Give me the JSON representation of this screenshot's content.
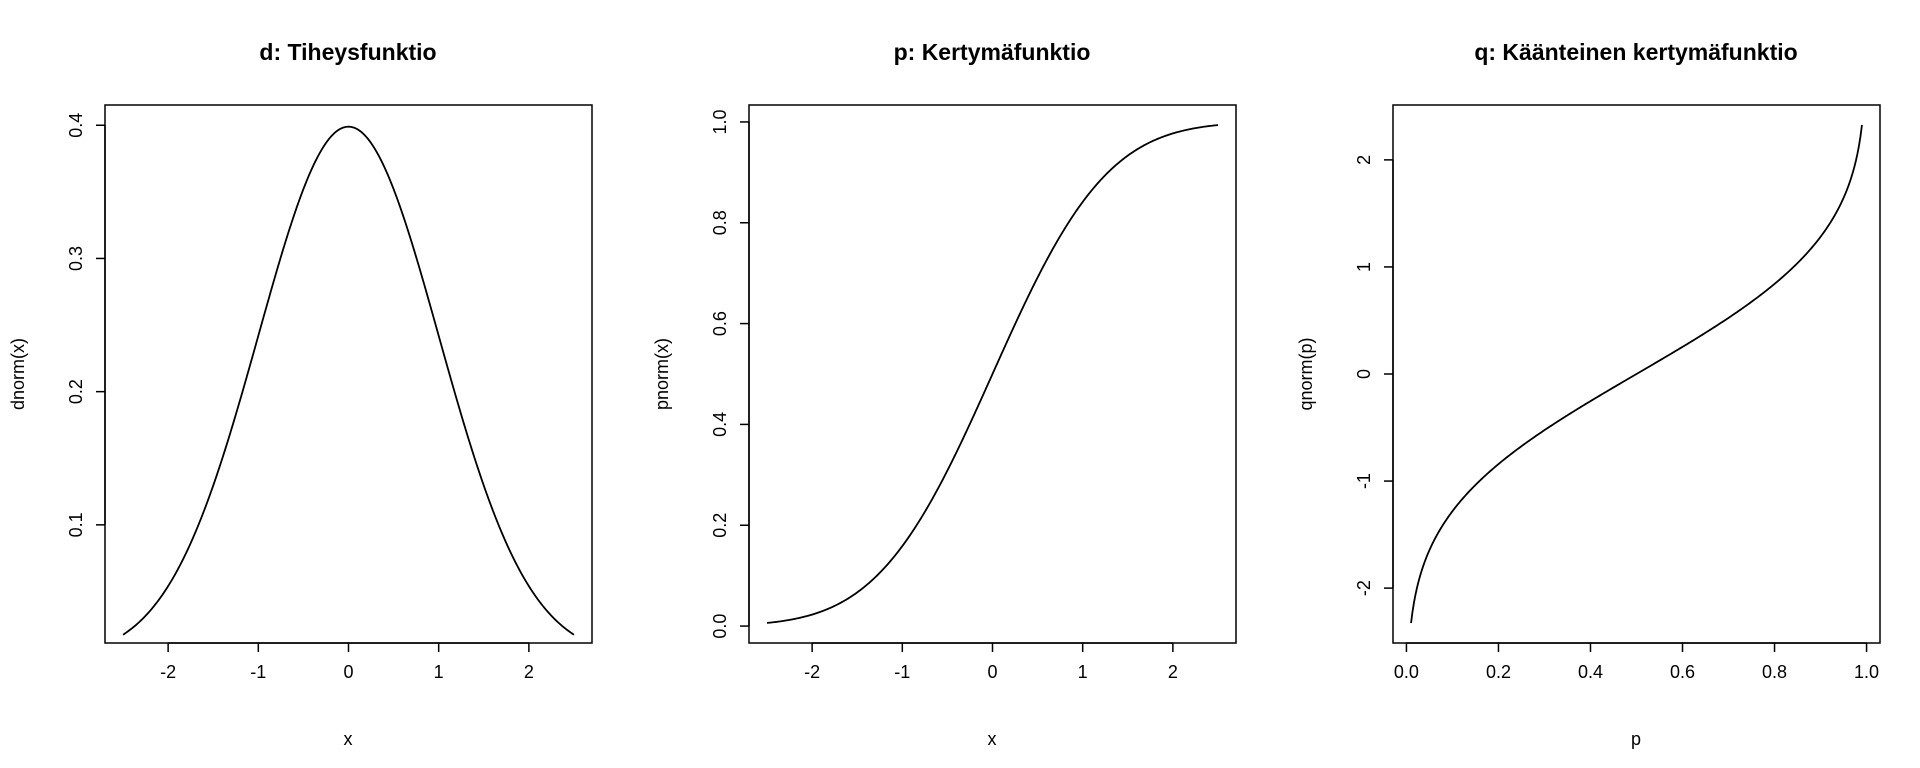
{
  "chart_data": [
    {
      "type": "line",
      "title": "d: Tiheysfunktio",
      "xlabel": "x",
      "ylabel": "dnorm(x)",
      "function": "dnorm",
      "x_range": [
        -2.5,
        2.5
      ],
      "xlim": [
        -2.7,
        2.7
      ],
      "ylim": [
        0.0113,
        0.4152
      ],
      "xticks": [
        -2,
        -1,
        0,
        1,
        2
      ],
      "xtick_labels": [
        "-2",
        "-1",
        "0",
        "1",
        "2"
      ],
      "yticks": [
        0.1,
        0.2,
        0.3,
        0.4
      ],
      "ytick_labels": [
        "0.1",
        "0.2",
        "0.3",
        "0.4"
      ],
      "grid": false,
      "key_points": [
        {
          "x": -2.5,
          "y": 0.0175
        },
        {
          "x": -2,
          "y": 0.054
        },
        {
          "x": -1,
          "y": 0.242
        },
        {
          "x": 0,
          "y": 0.399
        },
        {
          "x": 1,
          "y": 0.242
        },
        {
          "x": 2,
          "y": 0.054
        },
        {
          "x": 2.5,
          "y": 0.0175
        }
      ]
    },
    {
      "type": "line",
      "title": "p: Kertymäfunktio",
      "xlabel": "x",
      "ylabel": "pnorm(x)",
      "function": "pnorm",
      "x_range": [
        -2.5,
        2.5
      ],
      "xlim": [
        -2.7,
        2.7
      ],
      "ylim": [
        -0.0336,
        1.0336
      ],
      "xticks": [
        -2,
        -1,
        0,
        1,
        2
      ],
      "xtick_labels": [
        "-2",
        "-1",
        "0",
        "1",
        "2"
      ],
      "yticks": [
        0.0,
        0.2,
        0.4,
        0.6,
        0.8,
        1.0
      ],
      "ytick_labels": [
        "0.0",
        "0.2",
        "0.4",
        "0.6",
        "0.8",
        "1.0"
      ],
      "grid": false,
      "key_points": [
        {
          "x": -2.5,
          "y": 0.0062
        },
        {
          "x": -2,
          "y": 0.0228
        },
        {
          "x": -1,
          "y": 0.1587
        },
        {
          "x": 0,
          "y": 0.5
        },
        {
          "x": 1,
          "y": 0.8413
        },
        {
          "x": 2,
          "y": 0.9772
        },
        {
          "x": 2.5,
          "y": 0.9938
        }
      ]
    },
    {
      "type": "line",
      "title": "q: Käänteinen kertymäfunktio",
      "xlabel": "p",
      "ylabel": "qnorm(p)",
      "function": "qnorm",
      "x_range": [
        0.01,
        0.99
      ],
      "xlim": [
        -0.0292,
        1.0292
      ],
      "ylim": [
        -2.5126,
        2.5126
      ],
      "xticks": [
        0.0,
        0.2,
        0.4,
        0.6,
        0.8,
        1.0
      ],
      "xtick_labels": [
        "0.0",
        "0.2",
        "0.4",
        "0.6",
        "0.8",
        "1.0"
      ],
      "yticks": [
        -2,
        -1,
        0,
        1,
        2
      ],
      "ytick_labels": [
        "-2",
        "-1",
        "0",
        "1",
        "2"
      ],
      "grid": false,
      "key_points": [
        {
          "x": 0.01,
          "y": -2.326
        },
        {
          "x": 0.1,
          "y": -1.282
        },
        {
          "x": 0.3,
          "y": -0.524
        },
        {
          "x": 0.5,
          "y": 0.0
        },
        {
          "x": 0.7,
          "y": 0.524
        },
        {
          "x": 0.9,
          "y": 1.282
        },
        {
          "x": 0.99,
          "y": 2.326
        }
      ]
    }
  ]
}
